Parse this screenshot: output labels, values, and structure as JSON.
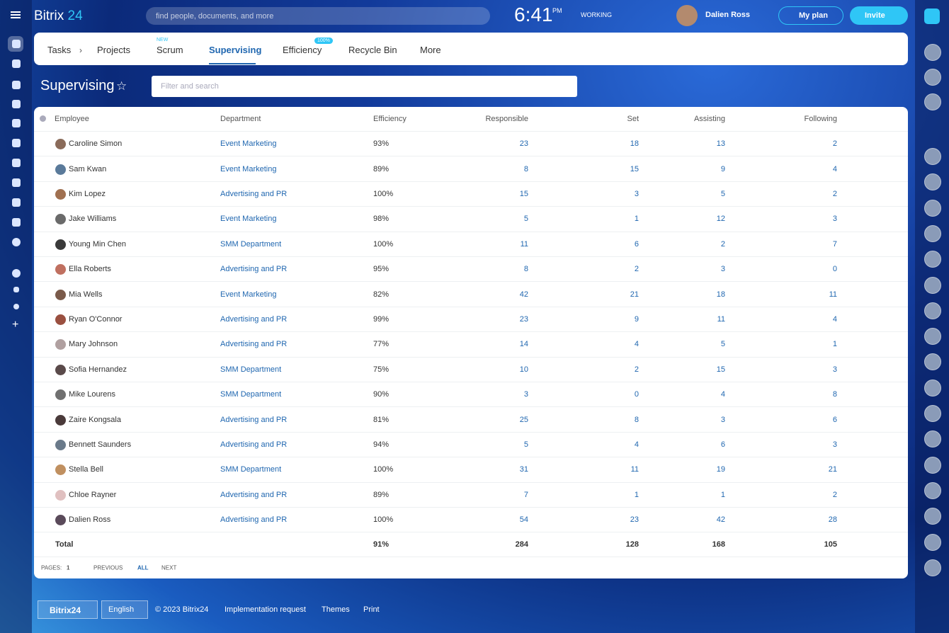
{
  "header": {
    "logo": "Bitrix",
    "logo_num": "24",
    "search_placeholder": "find people, documents, and more",
    "time": "6:41",
    "ampm": "PM",
    "status": "WORKING",
    "user": "Dalien Ross",
    "plan": "My plan",
    "invite": "Invite"
  },
  "tabs": [
    {
      "label": "Tasks"
    },
    {
      "label": "Projects"
    },
    {
      "label": "Scrum",
      "badge": "NEW"
    },
    {
      "label": "Supervising"
    },
    {
      "label": "Efficiency",
      "badge": "100%"
    },
    {
      "label": "Recycle Bin"
    },
    {
      "label": "More"
    }
  ],
  "page": {
    "title": "Supervising",
    "filter_placeholder": "Filter and search"
  },
  "table": {
    "columns": [
      "Employee",
      "Department",
      "Efficiency",
      "Responsible",
      "Set",
      "Assisting",
      "Following"
    ],
    "rows": [
      [
        "Caroline Simon",
        "Event Marketing",
        "93%",
        23,
        18,
        13,
        2
      ],
      [
        "Sam Kwan",
        "Event Marketing",
        "89%",
        8,
        15,
        9,
        4
      ],
      [
        "Kim Lopez",
        "Advertising and PR",
        "100%",
        15,
        3,
        5,
        2
      ],
      [
        "Jake Williams",
        "Event Marketing",
        "98%",
        5,
        1,
        12,
        3
      ],
      [
        "Young Min Chen",
        "SMM Department",
        "100%",
        11,
        6,
        2,
        7
      ],
      [
        "Ella Roberts",
        "Advertising and PR",
        "95%",
        8,
        2,
        3,
        0
      ],
      [
        "Mia Wells",
        "Event Marketing",
        "82%",
        42,
        21,
        18,
        11
      ],
      [
        "Ryan O'Connor",
        "Advertising and PR",
        "99%",
        23,
        9,
        11,
        4
      ],
      [
        "Mary Johnson",
        "Advertising and PR",
        "77%",
        14,
        4,
        5,
        1
      ],
      [
        "Sofia Hernandez",
        "SMM Department",
        "75%",
        10,
        2,
        15,
        3
      ],
      [
        "Mike Lourens",
        "SMM Department",
        "90%",
        3,
        0,
        4,
        8
      ],
      [
        "Zaire Kongsala",
        "Advertising and PR",
        "81%",
        25,
        8,
        3,
        6
      ],
      [
        "Bennett Saunders",
        "Advertising and PR",
        "94%",
        5,
        4,
        6,
        3
      ],
      [
        "Stella Bell",
        "SMM Department",
        "100%",
        31,
        11,
        19,
        21
      ],
      [
        "Chloe Rayner",
        "Advertising and PR",
        "89%",
        7,
        1,
        1,
        2
      ],
      [
        "Dalien Ross",
        "Advertising and PR",
        "100%",
        54,
        23,
        42,
        28
      ]
    ],
    "total": {
      "label": "Total",
      "efficiency": "91%",
      "responsible": 284,
      "set": 128,
      "assisting": 168,
      "following": 105
    }
  },
  "pagination": {
    "pages_label": "PAGES:",
    "pages": "1",
    "previous": "PREVIOUS",
    "all": "ALL",
    "next": "NEXT"
  },
  "footer": {
    "brand": "Bitrix24",
    "language": "English",
    "copyright": "© 2023 Bitrix24",
    "links": [
      "Implementation request",
      "Themes",
      "Print"
    ]
  }
}
